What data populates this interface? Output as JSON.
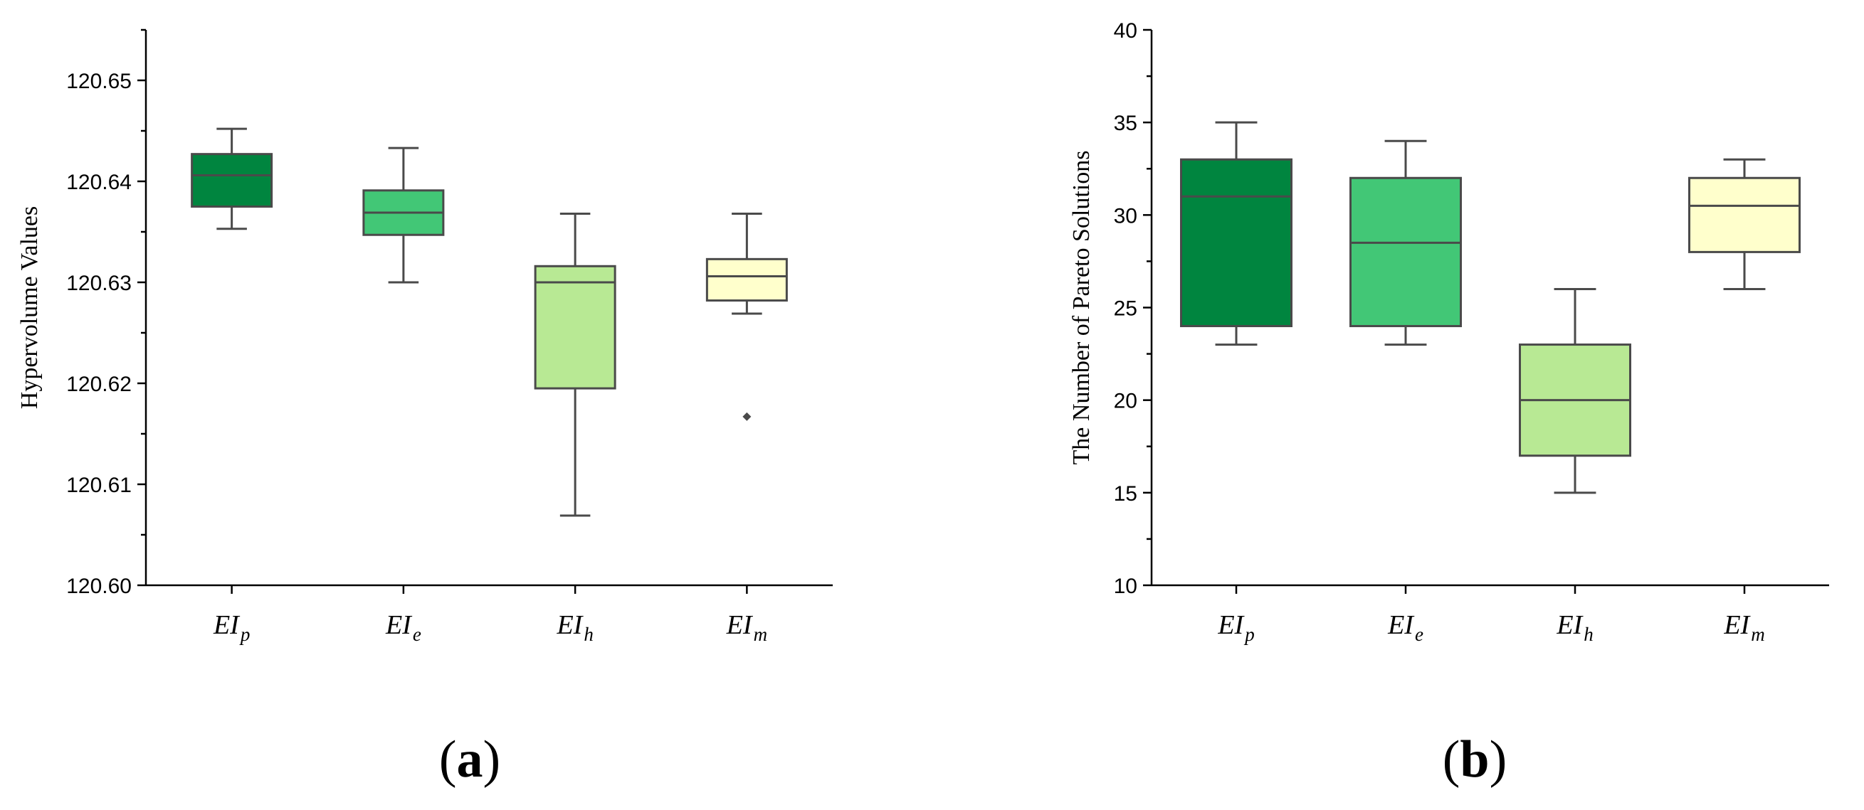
{
  "chart_data": [
    {
      "type": "box",
      "panel_label": "a",
      "ylabel": "Hypervolume Values",
      "ylim": [
        120.6,
        120.655
      ],
      "yticks": [
        120.6,
        120.61,
        120.62,
        120.63,
        120.64,
        120.65
      ],
      "ytick_labels": [
        "120.60",
        "120.61",
        "120.62",
        "120.63",
        "120.64",
        "120.65"
      ],
      "categories": [
        {
          "base": "EI",
          "sub": "p"
        },
        {
          "base": "EI",
          "sub": "e"
        },
        {
          "base": "EI",
          "sub": "h"
        },
        {
          "base": "EI",
          "sub": "m"
        }
      ],
      "boxes": [
        {
          "min": 120.6353,
          "q1": 120.6375,
          "median": 120.6406,
          "q3": 120.6427,
          "max": 120.6452,
          "outliers": [],
          "color": "#00853f"
        },
        {
          "min": 120.63,
          "q1": 120.6347,
          "median": 120.6369,
          "q3": 120.6391,
          "max": 120.6433,
          "outliers": [],
          "color": "#42c776"
        },
        {
          "min": 120.6069,
          "q1": 120.6195,
          "median": 120.63,
          "q3": 120.6316,
          "max": 120.6368,
          "outliers": [],
          "color": "#b8e994"
        },
        {
          "min": 120.6269,
          "q1": 120.6282,
          "median": 120.6306,
          "q3": 120.6323,
          "max": 120.6368,
          "outliers": [
            120.6167
          ],
          "color": "#ffffcc"
        }
      ]
    },
    {
      "type": "box",
      "panel_label": "b",
      "ylabel": "The Number of Pareto Solutions",
      "ylim": [
        10,
        40
      ],
      "yticks": [
        10,
        15,
        20,
        25,
        30,
        35,
        40
      ],
      "ytick_labels": [
        "10",
        "15",
        "20",
        "25",
        "30",
        "35",
        "40"
      ],
      "categories": [
        {
          "base": "EI",
          "sub": "p"
        },
        {
          "base": "EI",
          "sub": "e"
        },
        {
          "base": "EI",
          "sub": "h"
        },
        {
          "base": "EI",
          "sub": "m"
        }
      ],
      "boxes": [
        {
          "min": 23,
          "q1": 24,
          "median": 31,
          "q3": 33,
          "max": 35,
          "outliers": [],
          "color": "#00853f"
        },
        {
          "min": 23,
          "q1": 24,
          "median": 28.5,
          "q3": 32,
          "max": 34,
          "outliers": [],
          "color": "#42c776"
        },
        {
          "min": 15,
          "q1": 17,
          "median": 20,
          "q3": 23,
          "max": 26,
          "outliers": [],
          "color": "#b8e994"
        },
        {
          "min": 26,
          "q1": 28,
          "median": 30.5,
          "q3": 32,
          "max": 33,
          "outliers": [],
          "color": "#ffffcc"
        }
      ]
    }
  ]
}
